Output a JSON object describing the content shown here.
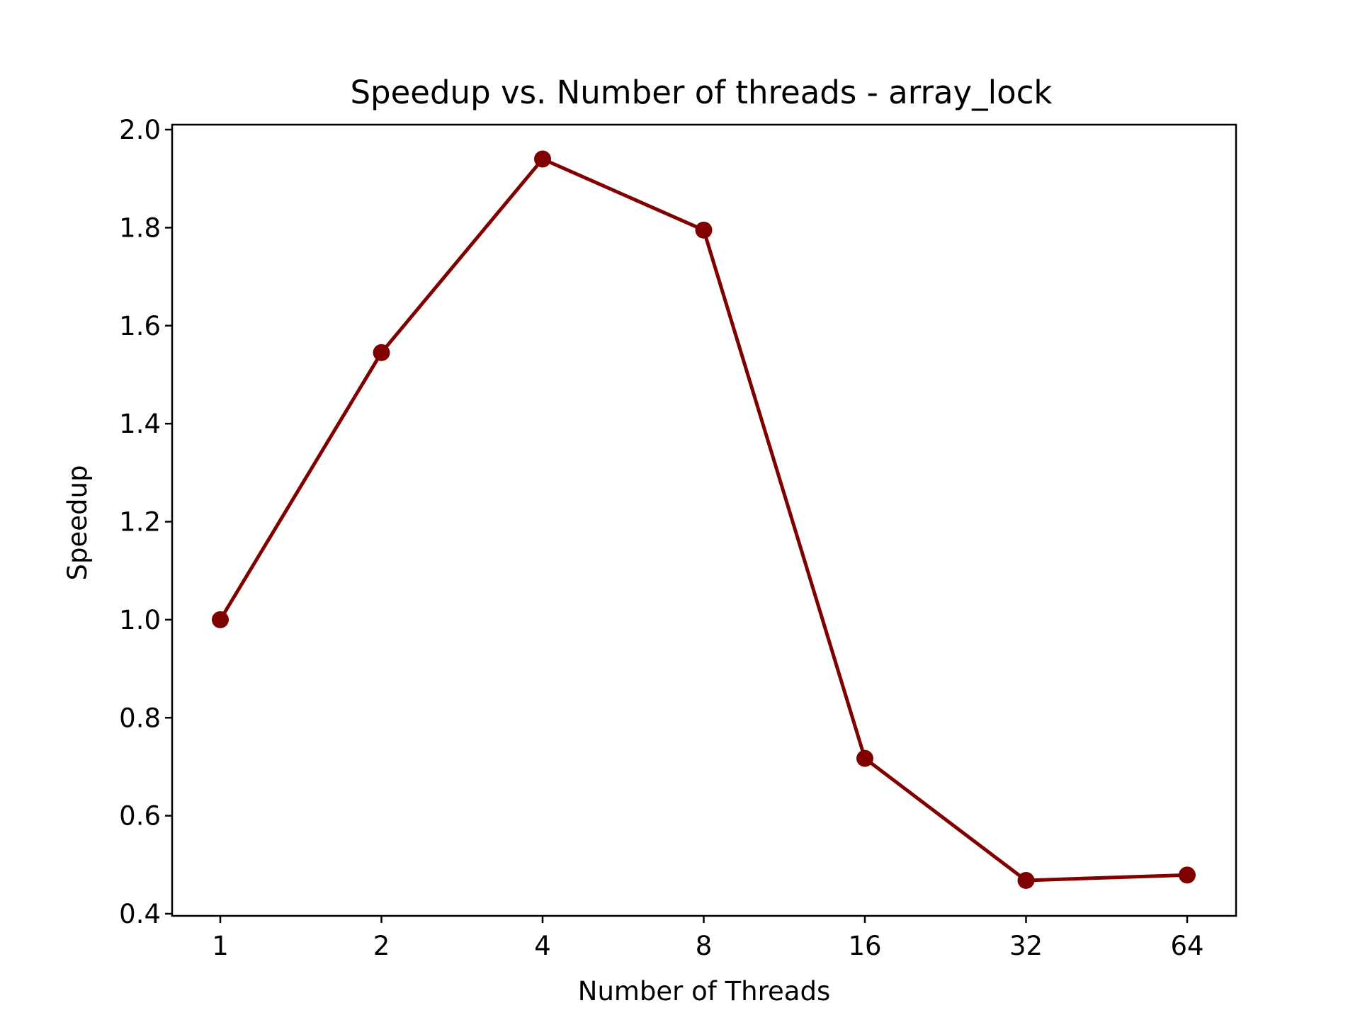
{
  "chart_data": {
    "type": "line",
    "title": "Speedup vs. Number of threads - array_lock",
    "xlabel": "Number of Threads",
    "ylabel": "Speedup",
    "categories": [
      "1",
      "2",
      "4",
      "8",
      "16",
      "32",
      "64"
    ],
    "series": [
      {
        "values": [
          1.0,
          1.545,
          1.94,
          1.795,
          0.717,
          0.468,
          0.479
        ],
        "color": "#800000",
        "marker": "circle"
      }
    ],
    "ylim": [
      0.4,
      2.0
    ],
    "yticks": [
      0.4,
      0.6,
      0.8,
      1.0,
      1.2,
      1.4,
      1.6,
      1.8,
      2.0
    ],
    "ytick_labels": [
      "0.4",
      "0.6",
      "0.8",
      "1.0",
      "1.2",
      "1.4",
      "1.6",
      "1.8",
      "2.0"
    ],
    "grid": false,
    "legend": false
  }
}
